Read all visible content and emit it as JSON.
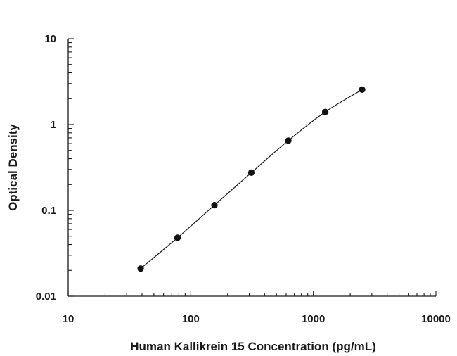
{
  "chart_data": {
    "type": "scatter",
    "title": "",
    "xlabel": "Human Kallikrein 15 Concentration (pg/mL)",
    "ylabel": "Optical Density",
    "x_scale": "log",
    "y_scale": "log",
    "xlim": [
      10,
      10000
    ],
    "ylim": [
      0.01,
      10
    ],
    "x_ticks": [
      "10",
      "100",
      "1000",
      "10000"
    ],
    "y_ticks": [
      "0.01",
      "0.1",
      "1",
      "10"
    ],
    "grid": false,
    "legend": "none",
    "series": [
      {
        "x": [
          39,
          78,
          156,
          312,
          625,
          1250,
          2500
        ],
        "y": [
          0.021,
          0.048,
          0.115,
          0.275,
          0.65,
          1.4,
          2.55
        ]
      }
    ],
    "fit_curve": true
  }
}
